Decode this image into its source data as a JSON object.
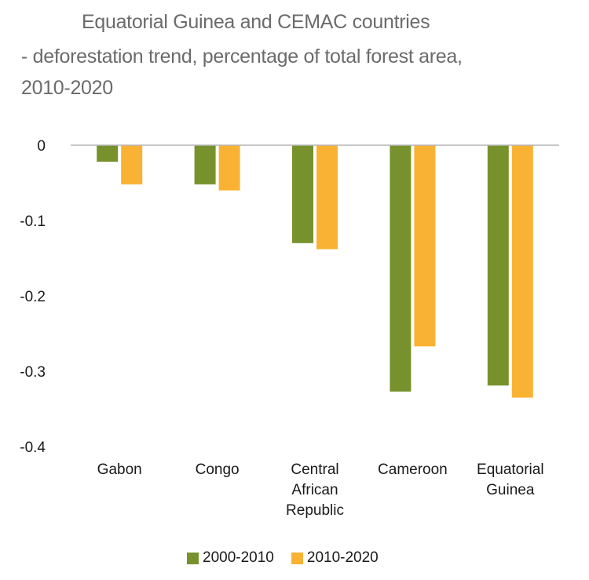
{
  "chart_data": {
    "type": "bar",
    "title": "Equatorial Guinea and CEMAC countries",
    "subtitle_lines": [
      "- deforestation trend, percentage of total forest area,",
      "2010-2020"
    ],
    "categories": [
      "Gabon",
      "Congo",
      "Central African Republic",
      "Cameroon",
      "Equatorial Guinea"
    ],
    "category_lines": [
      [
        "Gabon"
      ],
      [
        "Congo"
      ],
      [
        "Central",
        "African",
        "Republic"
      ],
      [
        "Cameroon"
      ],
      [
        "Equatorial",
        "Guinea"
      ]
    ],
    "series": [
      {
        "name": "2000-2010",
        "color": "#77922d",
        "values": [
          -0.022,
          -0.052,
          -0.13,
          -0.327,
          -0.319
        ]
      },
      {
        "name": "2010-2020",
        "color": "#f9b233",
        "values": [
          -0.052,
          -0.06,
          -0.138,
          -0.267,
          -0.335
        ]
      }
    ],
    "ylim": [
      -0.4,
      0
    ],
    "yticks": [
      0,
      -0.1,
      -0.2,
      -0.3,
      -0.4
    ],
    "ytick_labels": [
      "0",
      "-0.1",
      "-0.2",
      "-0.3",
      "-0.4"
    ],
    "xlabel": "",
    "ylabel": "",
    "grid": false,
    "legend_position": "bottom"
  }
}
